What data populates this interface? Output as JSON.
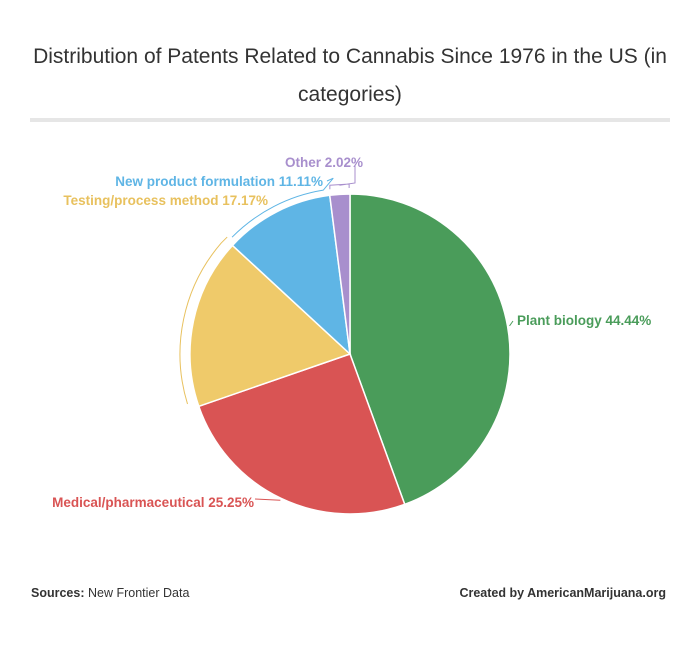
{
  "chart_data": {
    "type": "pie",
    "title": "Distribution of Patents Related to Cannabis Since 1976 in the US (in categories)",
    "slices": [
      {
        "label": "Plant biology",
        "value": 44.44,
        "display": "44.44%",
        "color": "#4a9c5a"
      },
      {
        "label": "Medical/pharmaceutical",
        "value": 25.25,
        "display": "25.25%",
        "color": "#d95454"
      },
      {
        "label": "Testing/process method",
        "value": 17.17,
        "display": "17.17%",
        "color": "#efca6a"
      },
      {
        "label": "New product formulation",
        "value": 11.11,
        "display": "11.11%",
        "color": "#5fb5e5"
      },
      {
        "label": "Other",
        "value": 2.02,
        "display": "2.02%",
        "color": "#a88fcd"
      }
    ],
    "label_colors": [
      "#4a9c5a",
      "#d95454",
      "#e8c15e",
      "#5fb5e5",
      "#a88fcd"
    ],
    "start_angle_deg": 0,
    "direction": "clockwise"
  },
  "footer": {
    "sources_label": "Sources:",
    "sources_value": "New Frontier Data",
    "credit": "Created by AmericanMarijuana.org"
  }
}
